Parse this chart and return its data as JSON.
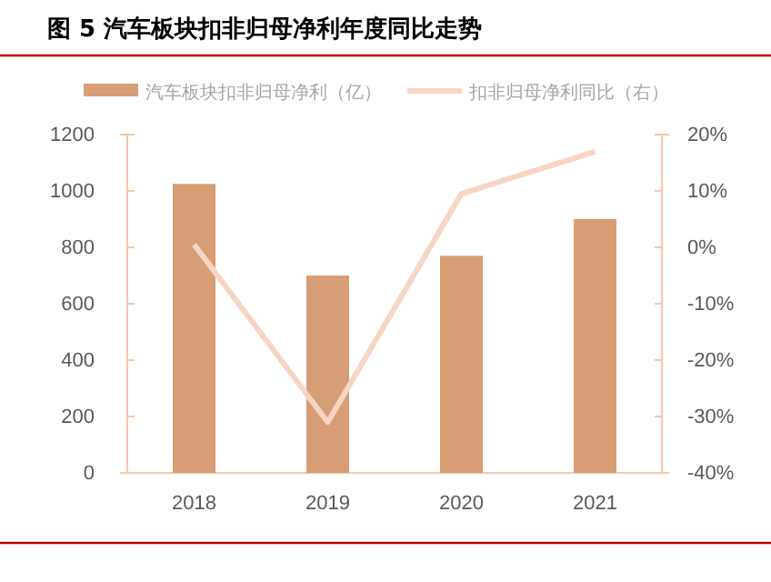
{
  "chart_data": {
    "type": "bar",
    "title": "图 5 汽车板块扣非归母净利年度同比走势",
    "categories": [
      "2018",
      "2019",
      "2020",
      "2021"
    ],
    "series": [
      {
        "name": "汽车板块扣非归母净利（亿）",
        "color": "#d79d74",
        "values": [
          1025,
          700,
          770,
          900
        ]
      },
      {
        "name": "扣非归母净利同比（右）",
        "type": "line",
        "axis": "y2",
        "color": "#f8d5c3",
        "values": [
          0.5,
          -31,
          9.5,
          17
        ]
      }
    ],
    "ylim": [
      0,
      1200
    ],
    "yticks": [
      0,
      200,
      400,
      600,
      800,
      1000,
      1200
    ],
    "y2lim": [
      -40,
      20
    ],
    "y2ticks": [
      {
        "value": -40,
        "label": "-40%"
      },
      {
        "value": -30,
        "label": "-30%"
      },
      {
        "value": -20,
        "label": "-20%"
      },
      {
        "value": -10,
        "label": "-10%"
      },
      {
        "value": 0,
        "label": "0%"
      },
      {
        "value": 10,
        "label": "10%"
      },
      {
        "value": 20,
        "label": "20%"
      }
    ],
    "grid": false,
    "legend": "top",
    "marker": "none",
    "line_style": "solid"
  }
}
